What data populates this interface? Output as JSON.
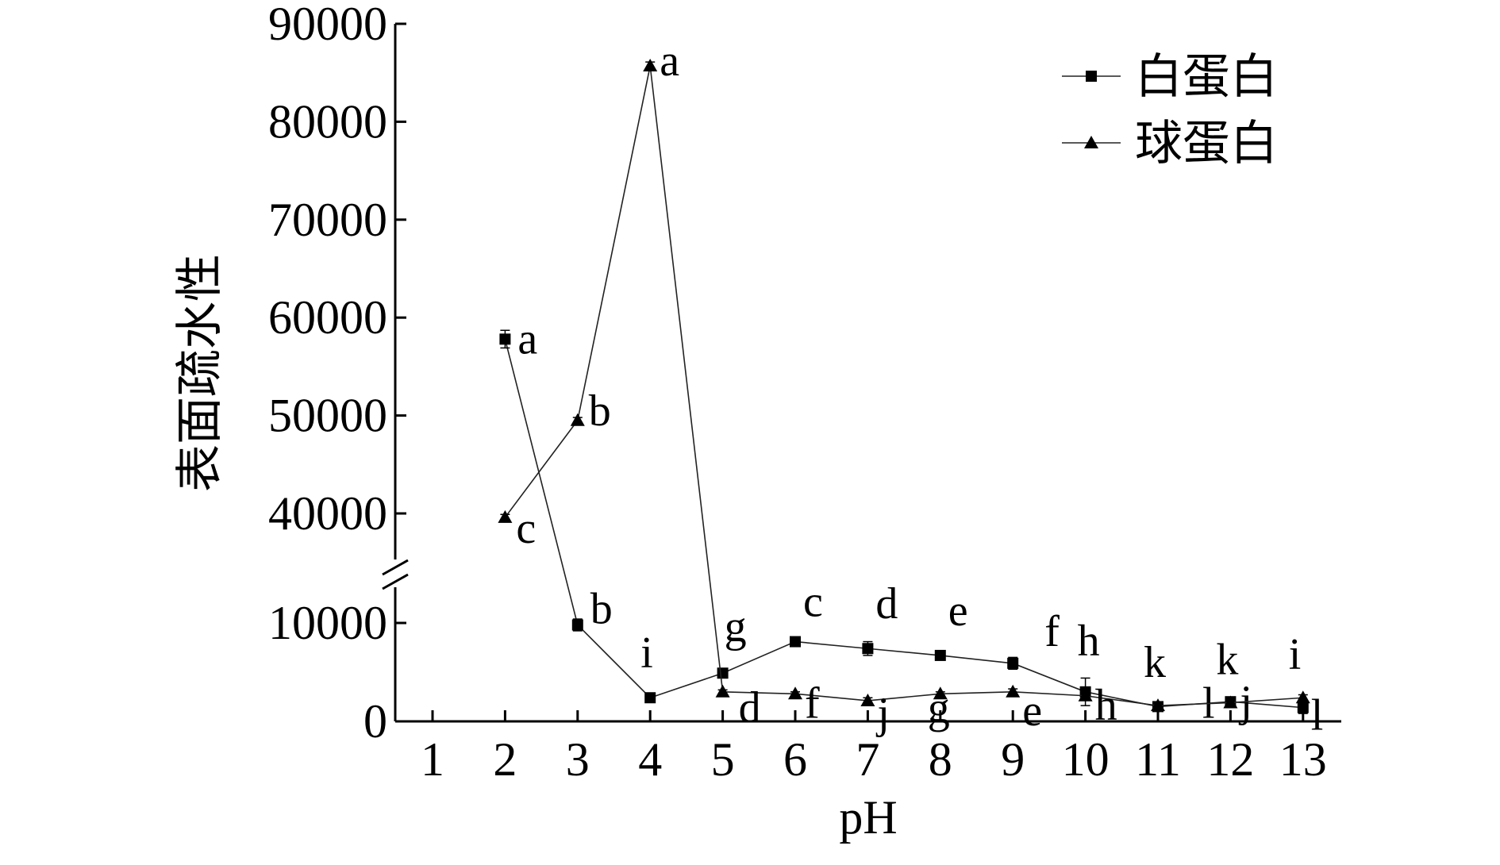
{
  "chart_data": {
    "type": "line",
    "xlabel": "pH",
    "ylabel": "表面疏水性",
    "x_ticks": [
      "1",
      "2",
      "3",
      "4",
      "5",
      "6",
      "7",
      "8",
      "9",
      "10",
      "11",
      "12",
      "13"
    ],
    "xlim": [
      0.5,
      13.5
    ],
    "y_axis": {
      "broken": true,
      "lower_segment": {
        "range": [
          0,
          11000
        ],
        "ticks": [
          "0",
          "10000"
        ]
      },
      "upper_segment": {
        "range": [
          37000,
          90000
        ],
        "ticks": [
          "40000",
          "50000",
          "60000",
          "70000",
          "80000",
          "90000"
        ]
      }
    },
    "legend": {
      "position": "top-right"
    },
    "series": [
      {
        "name": "白蛋白",
        "marker": "square",
        "x": [
          2,
          3,
          4,
          5,
          6,
          7,
          8,
          9,
          10,
          11,
          12,
          13
        ],
        "y": [
          57800,
          9800,
          2400,
          4900,
          8100,
          7400,
          6700,
          5900,
          3000,
          1500,
          2000,
          1400
        ],
        "error": [
          900,
          600,
          300,
          400,
          300,
          700,
          300,
          600,
          1400,
          300,
          400,
          600
        ],
        "labels": [
          "a",
          "b",
          "i",
          "g",
          "c",
          "d",
          "e",
          "f",
          "h",
          "l",
          "j",
          "l"
        ]
      },
      {
        "name": "球蛋白",
        "marker": "triangle",
        "x": [
          2,
          3,
          4,
          5,
          6,
          7,
          8,
          9,
          10,
          11,
          12,
          13
        ],
        "y": [
          39600,
          49500,
          85700,
          3000,
          2800,
          2100,
          2800,
          3000,
          2600,
          1600,
          1900,
          2400
        ],
        "error": [
          300,
          300,
          400,
          200,
          200,
          300,
          200,
          300,
          300,
          200,
          300,
          300
        ],
        "labels": [
          "c",
          "b",
          "a",
          "d",
          "f",
          "j",
          "g",
          "e",
          "h",
          "k",
          "k",
          "i"
        ]
      }
    ]
  }
}
